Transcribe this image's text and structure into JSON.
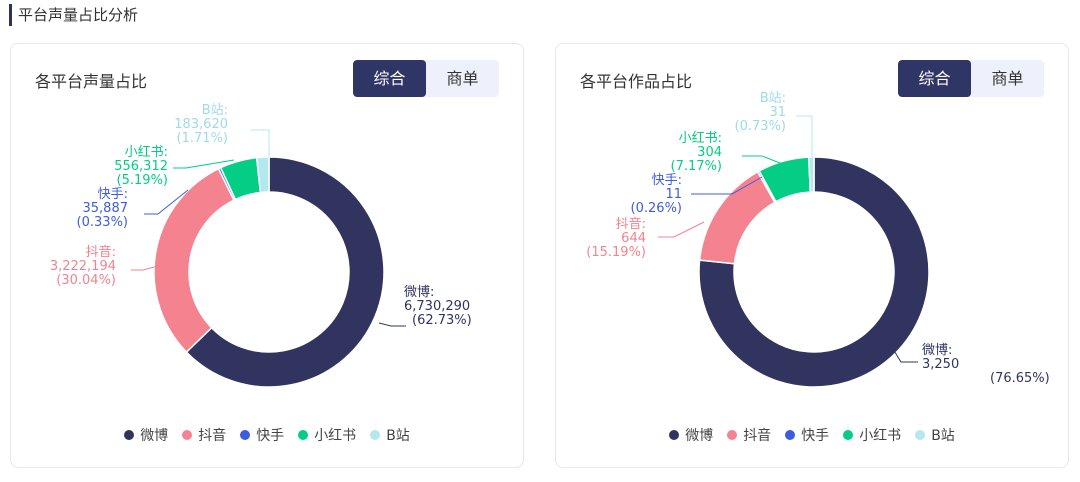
{
  "section_title": "平台声量占比分析",
  "colors": {
    "微博": "#30345f",
    "抖音": "#f4838f",
    "快手": "#3d5ce1",
    "小红书": "#04cd86",
    "B站": "#b3e8ef"
  },
  "legend": [
    "微博",
    "抖音",
    "快手",
    "小红书",
    "B站"
  ],
  "cards": [
    {
      "title": "各平台声量占比",
      "toggle": {
        "options": [
          "综合",
          "商单"
        ],
        "selected": "综合"
      },
      "chart_data": {
        "type": "pie",
        "categories": [
          "微博",
          "抖音",
          "快手",
          "小红书",
          "B站"
        ],
        "values": [
          6730290,
          3222194,
          35887,
          556312,
          183620
        ],
        "labels": [
          {
            "name": "微博:",
            "value": "6,730,290",
            "pct": "(62.73%)"
          },
          {
            "name": "抖音:",
            "value": "3,222,194",
            "pct": "(30.04%)"
          },
          {
            "name": "快手:",
            "value": "35,887",
            "pct": "(0.33%)"
          },
          {
            "name": "小红书:",
            "value": "556,312",
            "pct": "(5.19%)"
          },
          {
            "name": "B站:",
            "value": "183,620",
            "pct": "(1.71%)"
          }
        ]
      }
    },
    {
      "title": "各平台作品占比",
      "toggle": {
        "options": [
          "综合",
          "商单"
        ],
        "selected": "综合"
      },
      "chart_data": {
        "type": "pie",
        "categories": [
          "微博",
          "抖音",
          "快手",
          "小红书",
          "B站"
        ],
        "values": [
          3250,
          644,
          11,
          304,
          31
        ],
        "labels": [
          {
            "name": "微博:",
            "value": "3,250",
            "pct": "(76.65%)"
          },
          {
            "name": "抖音:",
            "value": "644",
            "pct": "(15.19%)"
          },
          {
            "name": "快手:",
            "value": "11",
            "pct": "(0.26%)"
          },
          {
            "name": "小红书:",
            "value": "304",
            "pct": "(7.17%)"
          },
          {
            "name": "B站:",
            "value": "31",
            "pct": "(0.73%)"
          }
        ]
      }
    }
  ]
}
